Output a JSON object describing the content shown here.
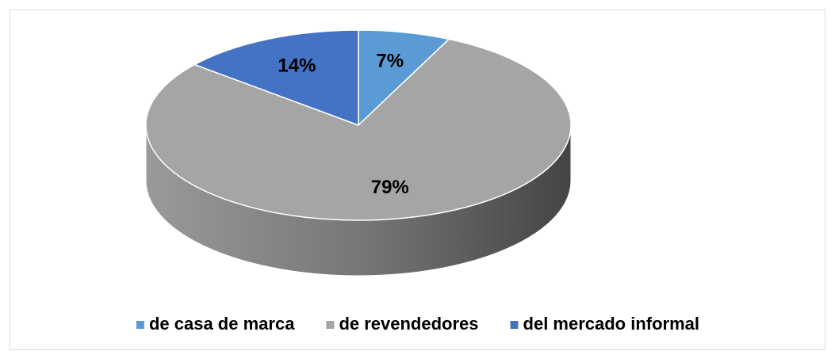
{
  "chart_data": {
    "type": "pie",
    "categories": [
      "de casa de marca",
      "de revendedores",
      "del mercado informal"
    ],
    "values": [
      7,
      79,
      14
    ],
    "value_labels": [
      "7%",
      "79%",
      "14%"
    ],
    "colors": [
      "#5b9bd5",
      "#a5a5a5",
      "#4472c4"
    ],
    "legend": "bottom"
  }
}
